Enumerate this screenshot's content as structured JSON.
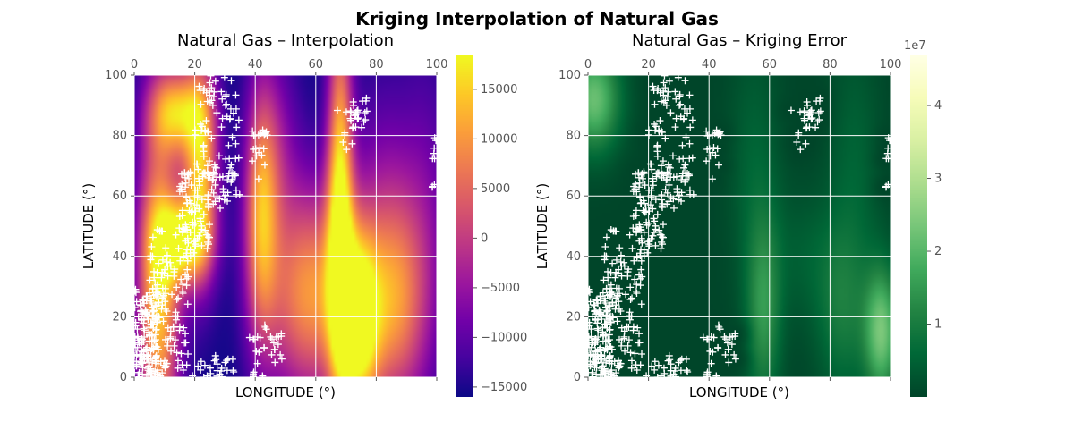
{
  "figure": {
    "title": "Kriging Interpolation of Natural Gas"
  },
  "chart_data": [
    {
      "type": "heatmap",
      "title": "Natural Gas – Interpolation",
      "xlabel": "LONGITUDE (°)",
      "ylabel": "LATITUDE (°)",
      "xlim": [
        0,
        100
      ],
      "ylim": [
        0,
        100
      ],
      "xticks": [
        0,
        20,
        40,
        60,
        80,
        100
      ],
      "yticks": [
        0,
        20,
        40,
        60,
        80,
        100
      ],
      "grid": true,
      "colormap": "plasma",
      "colorbar": {
        "range": [
          -16000,
          18500
        ],
        "ticks": [
          -15000,
          -10000,
          -5000,
          0,
          5000,
          10000,
          15000
        ],
        "tick_labels": [
          "−15000",
          "−10000",
          "−5000",
          "0",
          "5000",
          "10000",
          "15000"
        ],
        "offset_label": ""
      },
      "marker": "+",
      "marker_color": "#ffffff",
      "features": [
        {
          "x": 8,
          "y": 30,
          "sx": 5,
          "sy": 40,
          "v": 15000
        },
        {
          "x": 22,
          "y": 70,
          "sx": 4,
          "sy": 25,
          "v": 13000
        },
        {
          "x": 16,
          "y": 45,
          "sx": 6,
          "sy": 10,
          "v": 11000
        },
        {
          "x": 68,
          "y": 60,
          "sx": 3,
          "sy": 45,
          "v": 14000
        },
        {
          "x": 74,
          "y": 18,
          "sx": 5,
          "sy": 22,
          "v": 18000
        },
        {
          "x": 58,
          "y": 28,
          "sx": 10,
          "sy": 25,
          "v": 10000
        },
        {
          "x": 86,
          "y": 25,
          "sx": 7,
          "sy": 25,
          "v": 8000
        },
        {
          "x": 42,
          "y": 55,
          "sx": 4,
          "sy": 30,
          "v": 9000
        },
        {
          "x": 48,
          "y": 78,
          "sx": 5,
          "sy": 22,
          "v": -9000
        },
        {
          "x": 82,
          "y": 68,
          "sx": 8,
          "sy": 25,
          "v": -10000
        },
        {
          "x": 97,
          "y": 48,
          "sx": 6,
          "sy": 40,
          "v": -9000
        },
        {
          "x": 14,
          "y": 88,
          "sx": 6,
          "sy": 10,
          "v": 9000
        }
      ]
    },
    {
      "type": "heatmap",
      "title": "Natural Gas – Kriging Error",
      "xlabel": "LONGITUDE (°)",
      "ylabel": "LATITUDE (°)",
      "xlim": [
        0,
        100
      ],
      "ylim": [
        0,
        100
      ],
      "xticks": [
        0,
        20,
        40,
        60,
        80,
        100
      ],
      "yticks": [
        0,
        20,
        40,
        60,
        80,
        100
      ],
      "grid": true,
      "colormap": "YlGn_r",
      "colorbar": {
        "range": [
          0,
          4.7
        ],
        "ticks": [
          1,
          2,
          3,
          4
        ],
        "tick_labels": [
          "1",
          "2",
          "3",
          "4"
        ],
        "offset_label": "1e7"
      },
      "marker": "+",
      "marker_color": "#ffffff",
      "features": [
        {
          "x": 2,
          "y": 92,
          "sx": 6,
          "sy": 12,
          "v": 2.2
        },
        {
          "x": 58,
          "y": 22,
          "sx": 4,
          "sy": 22,
          "v": 1.4
        },
        {
          "x": 97,
          "y": 15,
          "sx": 4,
          "sy": 15,
          "v": 2.3
        },
        {
          "x": 84,
          "y": 22,
          "sx": 6,
          "sy": 20,
          "v": 0.9
        },
        {
          "x": 55,
          "y": 70,
          "sx": 6,
          "sy": 30,
          "v": 0.5
        },
        {
          "x": 88,
          "y": 70,
          "sx": 6,
          "sy": 30,
          "v": 0.5
        },
        {
          "x": 72,
          "y": 40,
          "sx": 8,
          "sy": 15,
          "v": 0.4
        }
      ],
      "sample_groups": [
        {
          "x": [
            0,
            8
          ],
          "y": [
            0,
            30
          ],
          "n": 140
        },
        {
          "x": [
            5,
            18
          ],
          "y": [
            10,
            50
          ],
          "n": 110
        },
        {
          "x": [
            15,
            25
          ],
          "y": [
            40,
            70
          ],
          "n": 90
        },
        {
          "x": [
            20,
            35
          ],
          "y": [
            65,
            100
          ],
          "n": 80
        },
        {
          "x": [
            25,
            35
          ],
          "y": [
            55,
            70
          ],
          "n": 25
        },
        {
          "x": [
            0,
            18
          ],
          "y": [
            0,
            12
          ],
          "n": 45
        },
        {
          "x": [
            18,
            28
          ],
          "y": [
            0,
            8
          ],
          "n": 12
        },
        {
          "x": [
            25,
            33
          ],
          "y": [
            0,
            6
          ],
          "n": 14
        },
        {
          "x": [
            39,
            44
          ],
          "y": [
            65,
            82
          ],
          "n": 22
        },
        {
          "x": [
            38,
            44
          ],
          "y": [
            12,
            20
          ],
          "n": 8
        },
        {
          "x": [
            38,
            44
          ],
          "y": [
            0,
            10
          ],
          "n": 10
        },
        {
          "x": [
            45,
            49
          ],
          "y": [
            4,
            15
          ],
          "n": 14
        },
        {
          "x": [
            67,
            75
          ],
          "y": [
            75,
            90
          ],
          "n": 18
        },
        {
          "x": [
            72,
            77
          ],
          "y": [
            82,
            93
          ],
          "n": 14
        },
        {
          "x": [
            98,
            100
          ],
          "y": [
            72,
            80
          ],
          "n": 6
        },
        {
          "x": [
            98,
            100
          ],
          "y": [
            60,
            64
          ],
          "n": 3
        }
      ]
    }
  ]
}
